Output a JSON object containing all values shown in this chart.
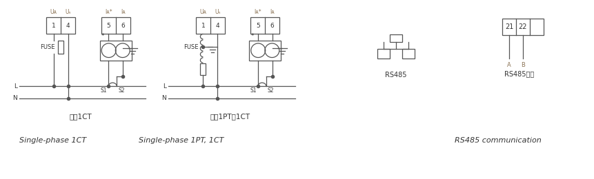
{
  "bg_color": "#ffffff",
  "line_color": "#555555",
  "label_color": "#8B7355",
  "text_color": "#333333",
  "diagram1_title_cn": "单相1CT",
  "diagram1_title_en": "Single-phase 1CT",
  "diagram2_title_cn": "单相1PT、1CT",
  "diagram2_title_en": "Single-phase 1PT, 1CT",
  "rs485_label": "RS485",
  "rs485_comm_label": "RS485通讯",
  "rs485_comm_en": "RS485 communication",
  "figsize": [
    8.62,
    2.6
  ],
  "dpi": 100
}
